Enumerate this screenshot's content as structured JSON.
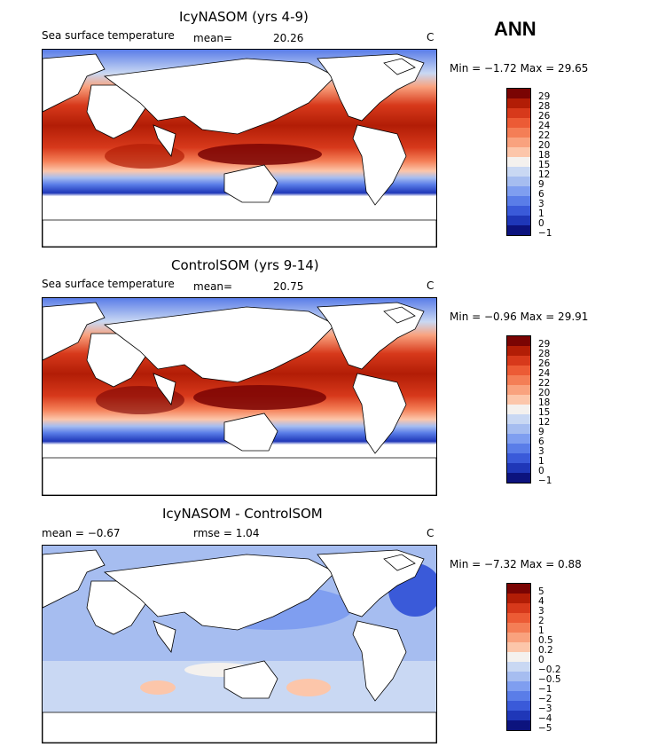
{
  "season": "ANN",
  "panels": [
    {
      "title": "IcyNASOM (yrs 4-9)",
      "variable": "Sea surface temperature",
      "mean_label": "mean=",
      "mean_value": "20.26",
      "unit": "C",
      "minmax": "Min =  −1.72 Max =  29.65",
      "levels": [
        "29",
        "28",
        "26",
        "24",
        "22",
        "20",
        "18",
        "15",
        "12",
        "9",
        "6",
        "3",
        "1",
        "0",
        "−1"
      ]
    },
    {
      "title": "ControlSOM (yrs 9-14)",
      "variable": "Sea surface temperature",
      "mean_label": "mean=",
      "mean_value": "20.75",
      "unit": "C",
      "minmax": "Min =  −0.96 Max =  29.91",
      "levels": [
        "29",
        "28",
        "26",
        "24",
        "22",
        "20",
        "18",
        "15",
        "12",
        "9",
        "6",
        "3",
        "1",
        "0",
        "−1"
      ]
    },
    {
      "title": "IcyNASOM - ControlSOM",
      "mean_text": "mean =   −0.67",
      "rmse_text": "rmse =     1.04",
      "unit": "C",
      "minmax": "Min =  −7.32 Max =    0.88",
      "levels": [
        "5",
        "4",
        "3",
        "2",
        "1",
        "0.5",
        "0.2",
        "0",
        "−0.2",
        "−0.5",
        "−1",
        "−2",
        "−3",
        "−4",
        "−5"
      ]
    }
  ],
  "colors": {
    "ramp": [
      "#7a0403",
      "#b21d06",
      "#d7391b",
      "#ec5b35",
      "#f47e56",
      "#f9a27e",
      "#fcc6aa",
      "#f4f1ee",
      "#c9d8f3",
      "#a6bdf0",
      "#7f9ef0",
      "#5a7de8",
      "#3a5ad9",
      "#1f37b8",
      "#0c137e"
    ],
    "land": "#ffffff",
    "coast": "#000000"
  }
}
